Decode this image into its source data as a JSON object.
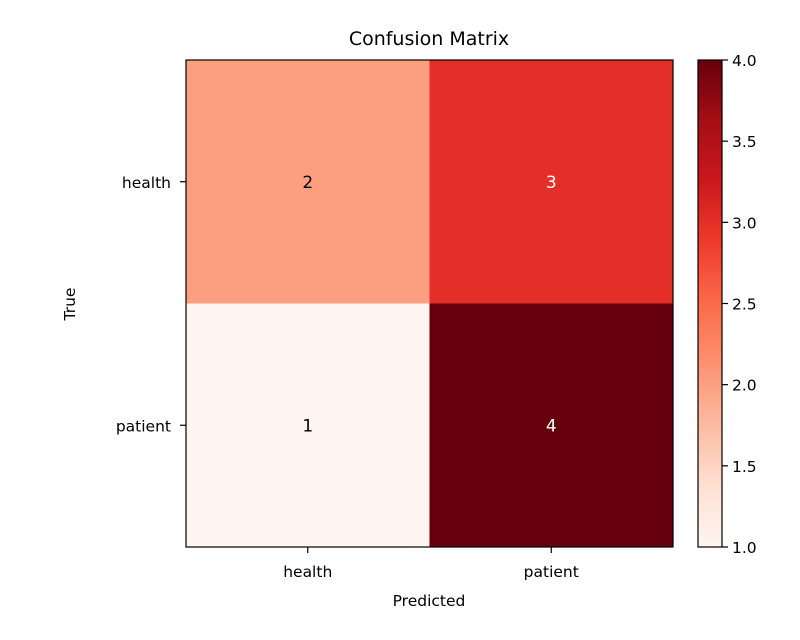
{
  "chart_data": {
    "type": "heatmap",
    "title": "Confusion Matrix",
    "xlabel": "Predicted",
    "ylabel": "True",
    "x_categories": [
      "health",
      "patient"
    ],
    "y_categories": [
      "health",
      "patient"
    ],
    "values": [
      [
        2,
        3
      ],
      [
        1,
        4
      ]
    ],
    "colormap": "Reds",
    "colorbar": {
      "min": 1.0,
      "max": 4.0,
      "ticks": [
        "1.0",
        "1.5",
        "2.0",
        "2.5",
        "3.0",
        "3.5",
        "4.0"
      ]
    },
    "cell_colors": {
      "1": "#fff5f0",
      "2": "#fc9f81",
      "3": "#e32f27",
      "4": "#67000d"
    }
  }
}
